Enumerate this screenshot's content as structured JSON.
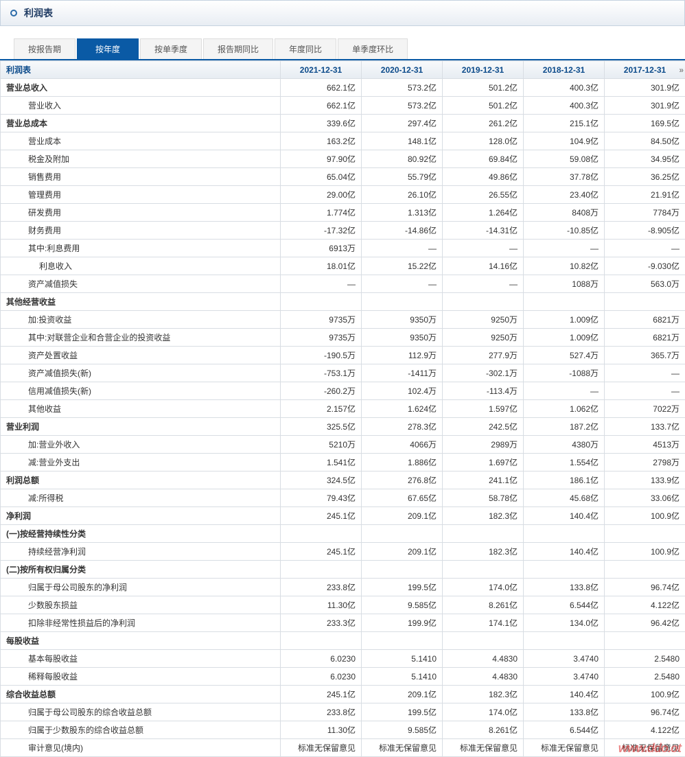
{
  "header": {
    "title": "利润表"
  },
  "tabs": [
    {
      "label": "按报告期",
      "active": false
    },
    {
      "label": "按年度",
      "active": true
    },
    {
      "label": "按单季度",
      "active": false
    },
    {
      "label": "报告期同比",
      "active": false
    },
    {
      "label": "年度同比",
      "active": false
    },
    {
      "label": "单季度环比",
      "active": false
    }
  ],
  "table": {
    "corner": "利润表",
    "columns": [
      "2021-12-31",
      "2020-12-31",
      "2019-12-31",
      "2018-12-31",
      "2017-12-31"
    ],
    "rows": [
      {
        "label": "营业总收入",
        "bold": true,
        "indent": 0,
        "v": [
          "662.1亿",
          "573.2亿",
          "501.2亿",
          "400.3亿",
          "301.9亿"
        ]
      },
      {
        "label": "营业收入",
        "bold": false,
        "indent": 1,
        "v": [
          "662.1亿",
          "573.2亿",
          "501.2亿",
          "400.3亿",
          "301.9亿"
        ]
      },
      {
        "label": "营业总成本",
        "bold": true,
        "indent": 0,
        "v": [
          "339.6亿",
          "297.4亿",
          "261.2亿",
          "215.1亿",
          "169.5亿"
        ]
      },
      {
        "label": "营业成本",
        "bold": false,
        "indent": 1,
        "v": [
          "163.2亿",
          "148.1亿",
          "128.0亿",
          "104.9亿",
          "84.50亿"
        ]
      },
      {
        "label": "税金及附加",
        "bold": false,
        "indent": 1,
        "v": [
          "97.90亿",
          "80.92亿",
          "69.84亿",
          "59.08亿",
          "34.95亿"
        ]
      },
      {
        "label": "销售费用",
        "bold": false,
        "indent": 1,
        "v": [
          "65.04亿",
          "55.79亿",
          "49.86亿",
          "37.78亿",
          "36.25亿"
        ]
      },
      {
        "label": "管理费用",
        "bold": false,
        "indent": 1,
        "v": [
          "29.00亿",
          "26.10亿",
          "26.55亿",
          "23.40亿",
          "21.91亿"
        ]
      },
      {
        "label": "研发费用",
        "bold": false,
        "indent": 1,
        "v": [
          "1.774亿",
          "1.313亿",
          "1.264亿",
          "8408万",
          "7784万"
        ]
      },
      {
        "label": "财务费用",
        "bold": false,
        "indent": 1,
        "v": [
          "-17.32亿",
          "-14.86亿",
          "-14.31亿",
          "-10.85亿",
          "-8.905亿"
        ]
      },
      {
        "label": "其中:利息费用",
        "bold": false,
        "indent": 1,
        "v": [
          "6913万",
          "—",
          "—",
          "—",
          "—"
        ]
      },
      {
        "label": "利息收入",
        "bold": false,
        "indent": 2,
        "v": [
          "18.01亿",
          "15.22亿",
          "14.16亿",
          "10.82亿",
          "-9.030亿"
        ]
      },
      {
        "label": "资产减值损失",
        "bold": false,
        "indent": 1,
        "v": [
          "—",
          "—",
          "—",
          "1088万",
          "563.0万"
        ]
      },
      {
        "label": "其他经营收益",
        "bold": true,
        "indent": 0,
        "v": [
          "",
          "",
          "",
          "",
          ""
        ]
      },
      {
        "label": "加:投资收益",
        "bold": false,
        "indent": 1,
        "v": [
          "9735万",
          "9350万",
          "9250万",
          "1.009亿",
          "6821万"
        ]
      },
      {
        "label": "其中:对联营企业和合营企业的投资收益",
        "bold": false,
        "indent": 1,
        "v": [
          "9735万",
          "9350万",
          "9250万",
          "1.009亿",
          "6821万"
        ]
      },
      {
        "label": "资产处置收益",
        "bold": false,
        "indent": 1,
        "v": [
          "-190.5万",
          "112.9万",
          "277.9万",
          "527.4万",
          "365.7万"
        ]
      },
      {
        "label": "资产减值损失(新)",
        "bold": false,
        "indent": 1,
        "v": [
          "-753.1万",
          "-1411万",
          "-302.1万",
          "-1088万",
          "—"
        ]
      },
      {
        "label": "信用减值损失(新)",
        "bold": false,
        "indent": 1,
        "v": [
          "-260.2万",
          "102.4万",
          "-113.4万",
          "—",
          "—"
        ]
      },
      {
        "label": "其他收益",
        "bold": false,
        "indent": 1,
        "v": [
          "2.157亿",
          "1.624亿",
          "1.597亿",
          "1.062亿",
          "7022万"
        ]
      },
      {
        "label": "营业利润",
        "bold": true,
        "indent": 0,
        "v": [
          "325.5亿",
          "278.3亿",
          "242.5亿",
          "187.2亿",
          "133.7亿"
        ]
      },
      {
        "label": "加:营业外收入",
        "bold": false,
        "indent": 1,
        "v": [
          "5210万",
          "4066万",
          "2989万",
          "4380万",
          "4513万"
        ]
      },
      {
        "label": "减:营业外支出",
        "bold": false,
        "indent": 1,
        "v": [
          "1.541亿",
          "1.886亿",
          "1.697亿",
          "1.554亿",
          "2798万"
        ]
      },
      {
        "label": "利润总额",
        "bold": true,
        "indent": 0,
        "v": [
          "324.5亿",
          "276.8亿",
          "241.1亿",
          "186.1亿",
          "133.9亿"
        ]
      },
      {
        "label": "减:所得税",
        "bold": false,
        "indent": 1,
        "v": [
          "79.43亿",
          "67.65亿",
          "58.78亿",
          "45.68亿",
          "33.06亿"
        ]
      },
      {
        "label": "净利润",
        "bold": true,
        "indent": 0,
        "v": [
          "245.1亿",
          "209.1亿",
          "182.3亿",
          "140.4亿",
          "100.9亿"
        ]
      },
      {
        "label": "(一)按经营持续性分类",
        "bold": true,
        "indent": 0,
        "v": [
          "",
          "",
          "",
          "",
          ""
        ]
      },
      {
        "label": "持续经营净利润",
        "bold": false,
        "indent": 1,
        "v": [
          "245.1亿",
          "209.1亿",
          "182.3亿",
          "140.4亿",
          "100.9亿"
        ]
      },
      {
        "label": "(二)按所有权归属分类",
        "bold": true,
        "indent": 0,
        "v": [
          "",
          "",
          "",
          "",
          ""
        ]
      },
      {
        "label": "归属于母公司股东的净利润",
        "bold": false,
        "indent": 1,
        "v": [
          "233.8亿",
          "199.5亿",
          "174.0亿",
          "133.8亿",
          "96.74亿"
        ]
      },
      {
        "label": "少数股东损益",
        "bold": false,
        "indent": 1,
        "v": [
          "11.30亿",
          "9.585亿",
          "8.261亿",
          "6.544亿",
          "4.122亿"
        ]
      },
      {
        "label": "扣除非经常性损益后的净利润",
        "bold": false,
        "indent": 1,
        "v": [
          "233.3亿",
          "199.9亿",
          "174.1亿",
          "134.0亿",
          "96.42亿"
        ]
      },
      {
        "label": "每股收益",
        "bold": true,
        "indent": 0,
        "v": [
          "",
          "",
          "",
          "",
          ""
        ]
      },
      {
        "label": "基本每股收益",
        "bold": false,
        "indent": 1,
        "v": [
          "6.0230",
          "5.1410",
          "4.4830",
          "3.4740",
          "2.5480"
        ]
      },
      {
        "label": "稀释每股收益",
        "bold": false,
        "indent": 1,
        "v": [
          "6.0230",
          "5.1410",
          "4.4830",
          "3.4740",
          "2.5480"
        ]
      },
      {
        "label": "综合收益总额",
        "bold": true,
        "indent": 0,
        "v": [
          "245.1亿",
          "209.1亿",
          "182.3亿",
          "140.4亿",
          "100.9亿"
        ]
      },
      {
        "label": "归属于母公司股东的综合收益总额",
        "bold": false,
        "indent": 1,
        "v": [
          "233.8亿",
          "199.5亿",
          "174.0亿",
          "133.8亿",
          "96.74亿"
        ]
      },
      {
        "label": "归属于少数股东的综合收益总额",
        "bold": false,
        "indent": 1,
        "v": [
          "11.30亿",
          "9.585亿",
          "8.261亿",
          "6.544亿",
          "4.122亿"
        ]
      },
      {
        "label": "审计意见(境内)",
        "bold": false,
        "indent": 1,
        "v": [
          "标准无保留意见",
          "标准无保留意见",
          "标准无保留意见",
          "标准无保留意见",
          "标准无保留意见"
        ]
      }
    ]
  },
  "watermark": "www.ddo.ot",
  "colors": {
    "header_text": "#1f3b63",
    "tab_active_bg": "#0a5aa5",
    "th_text": "#0b4a8a",
    "border": "#d8dde3"
  }
}
